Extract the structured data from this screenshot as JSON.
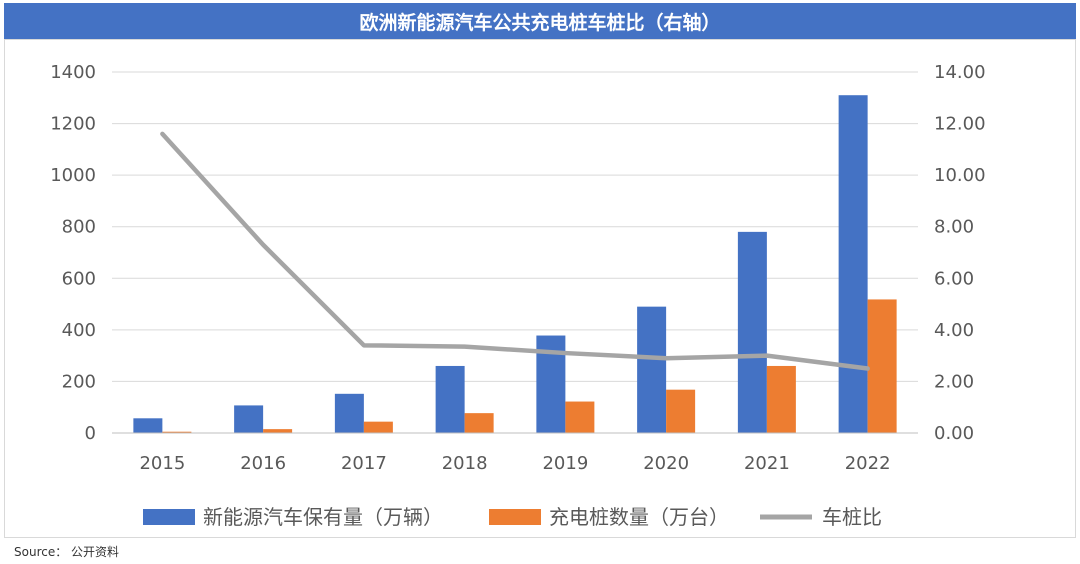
{
  "chart_data": {
    "type": "bar",
    "title": "欧洲新能源汽车公共充电桩车桩比（右轴）",
    "categories": [
      "2015",
      "2016",
      "2017",
      "2018",
      "2019",
      "2020",
      "2021",
      "2022"
    ],
    "series": [
      {
        "name": "新能源汽车保有量（万辆）",
        "type": "bar",
        "axis": "left",
        "color": "#4472c4",
        "values": [
          57,
          107,
          152,
          260,
          378,
          490,
          780,
          1310
        ]
      },
      {
        "name": "充电桩数量（万台）",
        "type": "bar",
        "axis": "left",
        "color": "#ed7d31",
        "values": [
          5,
          15,
          44,
          77,
          122,
          168,
          260,
          518
        ]
      },
      {
        "name": "车桩比",
        "type": "line",
        "axis": "right",
        "color": "#a5a5a5",
        "values": [
          11.6,
          7.3,
          3.4,
          3.35,
          3.1,
          2.9,
          3.0,
          2.5
        ]
      }
    ],
    "y_left": {
      "min": 0,
      "max": 1400,
      "ticks": [
        "0",
        "200",
        "400",
        "600",
        "800",
        "1000",
        "1200",
        "1400"
      ]
    },
    "y_right": {
      "min": 0,
      "max": 14,
      "ticks": [
        "0.00",
        "2.00",
        "4.00",
        "6.00",
        "8.00",
        "10.00",
        "12.00",
        "14.00"
      ]
    },
    "grid": true,
    "legend_position": "bottom"
  },
  "source": "Source：  公开资料"
}
